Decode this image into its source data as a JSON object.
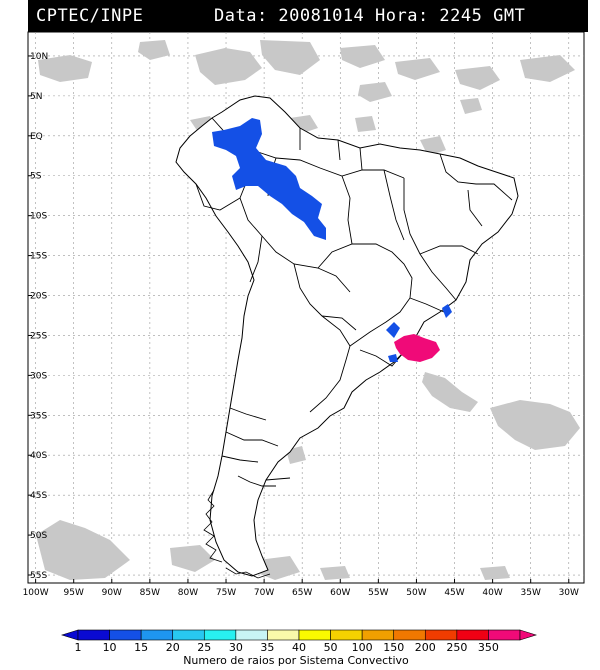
{
  "header": {
    "left": "CPTEC/INPE",
    "right": "Data: 20081014 Hora: 2245 GMT"
  },
  "lat_labels": [
    "10N",
    "5N",
    "EQ",
    "5S",
    "10S",
    "15S",
    "20S",
    "25S",
    "30S",
    "35S",
    "40S",
    "45S",
    "50S",
    "55S"
  ],
  "lon_labels": [
    "100W",
    "95W",
    "90W",
    "85W",
    "80W",
    "75W",
    "70W",
    "65W",
    "60W",
    "55W",
    "50W",
    "45W",
    "40W",
    "35W",
    "30W"
  ],
  "colorbar": {
    "title": "Numero de raios por Sistema Convectivo",
    "labels": [
      "1",
      "10",
      "15",
      "20",
      "25",
      "30",
      "35",
      "40",
      "50",
      "100",
      "150",
      "200",
      "250",
      "350"
    ],
    "colors": [
      "#0a0ad2",
      "#1450e6",
      "#1e96f0",
      "#28c8f0",
      "#28f0f0",
      "#c8f5f5",
      "#fafaaa",
      "#fafa00",
      "#f5d200",
      "#f0a000",
      "#f07800",
      "#f03c00",
      "#f00014",
      "#f00a78"
    ]
  },
  "map": {
    "ocean_color": "#ffffff",
    "cloud_color": "#c8c8c8",
    "storm_systems": [
      {
        "name": "Amazon system",
        "range_colors": "1-10",
        "color": "#1450e6"
      },
      {
        "name": "Southeast coast cell",
        "range_colors": "1-10",
        "color": "#1450e6"
      },
      {
        "name": "Parana cell",
        "range_colors": "1-10",
        "color": "#1450e6"
      },
      {
        "name": "Santa Catarina system",
        "range_colors": "350",
        "color": "#f00a78"
      }
    ]
  }
}
